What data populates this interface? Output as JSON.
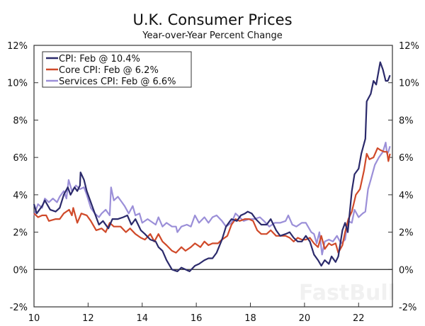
{
  "chart_data": {
    "type": "line",
    "title": "U.K. Consumer Prices",
    "subtitle": "Year-over-Year Percent Change",
    "xlabel": "",
    "ylabel": "",
    "xlim": [
      2010,
      2023.25
    ],
    "ylim": [
      -2,
      12
    ],
    "grid": false,
    "legend_position": "top-left",
    "x_ticks": [
      {
        "value": 2010,
        "label": "10"
      },
      {
        "value": 2012,
        "label": "12"
      },
      {
        "value": 2014,
        "label": "14"
      },
      {
        "value": 2016,
        "label": "16"
      },
      {
        "value": 2018,
        "label": "18"
      },
      {
        "value": 2020,
        "label": "20"
      },
      {
        "value": 2022,
        "label": "22"
      }
    ],
    "y_ticks": [
      {
        "value": 12,
        "label": "12%"
      },
      {
        "value": 10,
        "label": "10%"
      },
      {
        "value": 8,
        "label": "8%"
      },
      {
        "value": 6,
        "label": "6%"
      },
      {
        "value": 4,
        "label": "4%"
      },
      {
        "value": 2,
        "label": "2%"
      },
      {
        "value": 0,
        "label": "0%"
      },
      {
        "value": -2,
        "label": "-2%"
      }
    ],
    "series": [
      {
        "name": "CPI: Feb @ 10.4%",
        "color": "#2b2a6b",
        "points": [
          [
            2010.0,
            3.5
          ],
          [
            2010.1,
            3.0
          ],
          [
            2010.3,
            3.4
          ],
          [
            2010.4,
            3.7
          ],
          [
            2010.6,
            3.2
          ],
          [
            2010.8,
            3.1
          ],
          [
            2010.95,
            3.3
          ],
          [
            2011.1,
            4.0
          ],
          [
            2011.25,
            4.4
          ],
          [
            2011.35,
            4.0
          ],
          [
            2011.5,
            4.4
          ],
          [
            2011.6,
            4.2
          ],
          [
            2011.7,
            4.5
          ],
          [
            2011.72,
            5.2
          ],
          [
            2011.85,
            4.8
          ],
          [
            2011.95,
            4.2
          ],
          [
            2012.1,
            3.6
          ],
          [
            2012.25,
            3.0
          ],
          [
            2012.4,
            2.4
          ],
          [
            2012.55,
            2.6
          ],
          [
            2012.75,
            2.2
          ],
          [
            2012.9,
            2.7
          ],
          [
            2013.1,
            2.7
          ],
          [
            2013.3,
            2.8
          ],
          [
            2013.45,
            2.9
          ],
          [
            2013.6,
            2.4
          ],
          [
            2013.75,
            2.7
          ],
          [
            2013.95,
            2.1
          ],
          [
            2014.1,
            1.9
          ],
          [
            2014.3,
            1.6
          ],
          [
            2014.5,
            1.5
          ],
          [
            2014.6,
            1.2
          ],
          [
            2014.75,
            1.0
          ],
          [
            2014.9,
            0.5
          ],
          [
            2015.1,
            0.0
          ],
          [
            2015.3,
            -0.1
          ],
          [
            2015.45,
            0.1
          ],
          [
            2015.6,
            0.0
          ],
          [
            2015.75,
            -0.1
          ],
          [
            2015.95,
            0.2
          ],
          [
            2016.1,
            0.3
          ],
          [
            2016.3,
            0.5
          ],
          [
            2016.45,
            0.6
          ],
          [
            2016.6,
            0.6
          ],
          [
            2016.75,
            0.9
          ],
          [
            2016.95,
            1.6
          ],
          [
            2017.1,
            2.3
          ],
          [
            2017.3,
            2.7
          ],
          [
            2017.5,
            2.6
          ],
          [
            2017.65,
            2.9
          ],
          [
            2017.8,
            3.0
          ],
          [
            2017.9,
            3.1
          ],
          [
            2018.05,
            3.0
          ],
          [
            2018.2,
            2.7
          ],
          [
            2018.4,
            2.4
          ],
          [
            2018.6,
            2.4
          ],
          [
            2018.75,
            2.7
          ],
          [
            2018.95,
            2.1
          ],
          [
            2019.1,
            1.8
          ],
          [
            2019.3,
            1.9
          ],
          [
            2019.45,
            2.0
          ],
          [
            2019.6,
            1.7
          ],
          [
            2019.75,
            1.5
          ],
          [
            2019.9,
            1.5
          ],
          [
            2020.05,
            1.8
          ],
          [
            2020.2,
            1.5
          ],
          [
            2020.35,
            0.8
          ],
          [
            2020.5,
            0.5
          ],
          [
            2020.62,
            0.2
          ],
          [
            2020.75,
            0.5
          ],
          [
            2020.9,
            0.3
          ],
          [
            2021.0,
            0.7
          ],
          [
            2021.15,
            0.4
          ],
          [
            2021.25,
            0.7
          ],
          [
            2021.4,
            2.1
          ],
          [
            2021.5,
            2.5
          ],
          [
            2021.6,
            2.0
          ],
          [
            2021.75,
            4.2
          ],
          [
            2021.85,
            5.1
          ],
          [
            2022.0,
            5.4
          ],
          [
            2022.1,
            6.2
          ],
          [
            2022.25,
            7.0
          ],
          [
            2022.3,
            9.0
          ],
          [
            2022.45,
            9.4
          ],
          [
            2022.55,
            10.1
          ],
          [
            2022.65,
            9.9
          ],
          [
            2022.8,
            11.1
          ],
          [
            2022.9,
            10.7
          ],
          [
            2023.0,
            10.1
          ],
          [
            2023.08,
            10.1
          ],
          [
            2023.16,
            10.4
          ]
        ]
      },
      {
        "name": "Core CPI: Feb @ 6.2%",
        "color": "#d04a2a",
        "points": [
          [
            2010.0,
            3.0
          ],
          [
            2010.15,
            2.8
          ],
          [
            2010.3,
            2.9
          ],
          [
            2010.45,
            2.9
          ],
          [
            2010.55,
            2.6
          ],
          [
            2010.8,
            2.7
          ],
          [
            2010.95,
            2.7
          ],
          [
            2011.1,
            3.0
          ],
          [
            2011.3,
            3.2
          ],
          [
            2011.4,
            2.9
          ],
          [
            2011.45,
            3.3
          ],
          [
            2011.6,
            2.5
          ],
          [
            2011.75,
            3.0
          ],
          [
            2011.95,
            2.9
          ],
          [
            2012.1,
            2.6
          ],
          [
            2012.3,
            2.1
          ],
          [
            2012.5,
            2.2
          ],
          [
            2012.65,
            2.0
          ],
          [
            2012.8,
            2.5
          ],
          [
            2012.95,
            2.3
          ],
          [
            2013.2,
            2.3
          ],
          [
            2013.4,
            2.0
          ],
          [
            2013.55,
            2.2
          ],
          [
            2013.75,
            1.9
          ],
          [
            2013.95,
            1.7
          ],
          [
            2014.1,
            1.6
          ],
          [
            2014.3,
            1.9
          ],
          [
            2014.45,
            1.5
          ],
          [
            2014.6,
            1.9
          ],
          [
            2014.75,
            1.5
          ],
          [
            2014.9,
            1.3
          ],
          [
            2015.1,
            1.0
          ],
          [
            2015.25,
            0.9
          ],
          [
            2015.45,
            1.2
          ],
          [
            2015.6,
            1.0
          ],
          [
            2015.8,
            1.2
          ],
          [
            2015.95,
            1.4
          ],
          [
            2016.15,
            1.2
          ],
          [
            2016.3,
            1.5
          ],
          [
            2016.45,
            1.3
          ],
          [
            2016.6,
            1.4
          ],
          [
            2016.8,
            1.4
          ],
          [
            2016.95,
            1.6
          ],
          [
            2017.15,
            1.8
          ],
          [
            2017.3,
            2.4
          ],
          [
            2017.45,
            2.7
          ],
          [
            2017.6,
            2.6
          ],
          [
            2017.8,
            2.7
          ],
          [
            2017.95,
            2.7
          ],
          [
            2018.1,
            2.6
          ],
          [
            2018.25,
            2.1
          ],
          [
            2018.4,
            1.9
          ],
          [
            2018.6,
            1.9
          ],
          [
            2018.75,
            2.1
          ],
          [
            2018.95,
            1.8
          ],
          [
            2019.15,
            1.8
          ],
          [
            2019.3,
            1.8
          ],
          [
            2019.45,
            1.7
          ],
          [
            2019.6,
            1.5
          ],
          [
            2019.75,
            1.7
          ],
          [
            2019.9,
            1.6
          ],
          [
            2020.05,
            1.6
          ],
          [
            2020.2,
            1.7
          ],
          [
            2020.35,
            1.4
          ],
          [
            2020.5,
            1.2
          ],
          [
            2020.62,
            1.8
          ],
          [
            2020.75,
            1.1
          ],
          [
            2020.9,
            1.4
          ],
          [
            2021.0,
            1.3
          ],
          [
            2021.15,
            1.4
          ],
          [
            2021.25,
            0.9
          ],
          [
            2021.4,
            1.3
          ],
          [
            2021.5,
            2.0
          ],
          [
            2021.62,
            2.7
          ],
          [
            2021.75,
            3.1
          ],
          [
            2021.9,
            4.0
          ],
          [
            2022.05,
            4.3
          ],
          [
            2022.2,
            5.3
          ],
          [
            2022.3,
            6.2
          ],
          [
            2022.4,
            5.9
          ],
          [
            2022.55,
            6.0
          ],
          [
            2022.7,
            6.5
          ],
          [
            2022.8,
            6.4
          ],
          [
            2022.95,
            6.3
          ],
          [
            2023.05,
            6.3
          ],
          [
            2023.1,
            5.8
          ],
          [
            2023.16,
            6.2
          ]
        ]
      },
      {
        "name": "Services CPI: Feb @ 6.6%",
        "color": "#9b8fd8",
        "points": [
          [
            2010.0,
            2.9
          ],
          [
            2010.15,
            3.5
          ],
          [
            2010.3,
            3.3
          ],
          [
            2010.4,
            3.8
          ],
          [
            2010.55,
            3.6
          ],
          [
            2010.7,
            3.8
          ],
          [
            2010.85,
            3.6
          ],
          [
            2010.95,
            3.9
          ],
          [
            2011.1,
            4.2
          ],
          [
            2011.2,
            3.8
          ],
          [
            2011.28,
            4.8
          ],
          [
            2011.4,
            4.2
          ],
          [
            2011.55,
            4.5
          ],
          [
            2011.7,
            4.3
          ],
          [
            2011.85,
            4.4
          ],
          [
            2011.95,
            4.0
          ],
          [
            2012.1,
            3.3
          ],
          [
            2012.25,
            3.0
          ],
          [
            2012.4,
            2.8
          ],
          [
            2012.5,
            3.0
          ],
          [
            2012.65,
            3.2
          ],
          [
            2012.8,
            2.9
          ],
          [
            2012.85,
            4.4
          ],
          [
            2012.95,
            3.7
          ],
          [
            2013.1,
            3.9
          ],
          [
            2013.25,
            3.6
          ],
          [
            2013.35,
            3.4
          ],
          [
            2013.5,
            3.0
          ],
          [
            2013.65,
            3.4
          ],
          [
            2013.75,
            2.9
          ],
          [
            2013.9,
            3.0
          ],
          [
            2014.0,
            2.5
          ],
          [
            2014.2,
            2.7
          ],
          [
            2014.4,
            2.5
          ],
          [
            2014.5,
            2.4
          ],
          [
            2014.6,
            2.8
          ],
          [
            2014.75,
            2.3
          ],
          [
            2014.9,
            2.5
          ],
          [
            2015.1,
            2.3
          ],
          [
            2015.25,
            2.3
          ],
          [
            2015.3,
            2.0
          ],
          [
            2015.45,
            2.3
          ],
          [
            2015.65,
            2.4
          ],
          [
            2015.8,
            2.3
          ],
          [
            2015.95,
            2.9
          ],
          [
            2016.1,
            2.5
          ],
          [
            2016.3,
            2.8
          ],
          [
            2016.45,
            2.5
          ],
          [
            2016.6,
            2.8
          ],
          [
            2016.75,
            2.9
          ],
          [
            2016.95,
            2.6
          ],
          [
            2017.1,
            2.3
          ],
          [
            2017.3,
            2.5
          ],
          [
            2017.45,
            3.0
          ],
          [
            2017.6,
            2.8
          ],
          [
            2017.75,
            2.6
          ],
          [
            2017.95,
            2.7
          ],
          [
            2018.15,
            2.7
          ],
          [
            2018.35,
            2.8
          ],
          [
            2018.5,
            2.6
          ],
          [
            2018.7,
            2.3
          ],
          [
            2018.9,
            2.5
          ],
          [
            2019.1,
            2.5
          ],
          [
            2019.3,
            2.6
          ],
          [
            2019.4,
            2.9
          ],
          [
            2019.55,
            2.4
          ],
          [
            2019.7,
            2.3
          ],
          [
            2019.9,
            2.5
          ],
          [
            2020.05,
            2.5
          ],
          [
            2020.25,
            2.0
          ],
          [
            2020.35,
            1.9
          ],
          [
            2020.45,
            1.4
          ],
          [
            2020.55,
            2.0
          ],
          [
            2020.65,
            0.8
          ],
          [
            2020.75,
            1.5
          ],
          [
            2020.9,
            1.6
          ],
          [
            2021.05,
            1.5
          ],
          [
            2021.2,
            1.8
          ],
          [
            2021.35,
            1.4
          ],
          [
            2021.5,
            1.6
          ],
          [
            2021.6,
            2.6
          ],
          [
            2021.75,
            2.5
          ],
          [
            2021.85,
            3.2
          ],
          [
            2022.0,
            2.8
          ],
          [
            2022.15,
            3.0
          ],
          [
            2022.25,
            3.1
          ],
          [
            2022.35,
            4.3
          ],
          [
            2022.45,
            4.8
          ],
          [
            2022.6,
            5.6
          ],
          [
            2022.75,
            6.0
          ],
          [
            2022.9,
            6.3
          ],
          [
            2023.0,
            6.8
          ],
          [
            2023.05,
            6.2
          ],
          [
            2023.1,
            6.3
          ],
          [
            2023.16,
            6.6
          ]
        ]
      }
    ]
  },
  "watermark": "FastBull"
}
